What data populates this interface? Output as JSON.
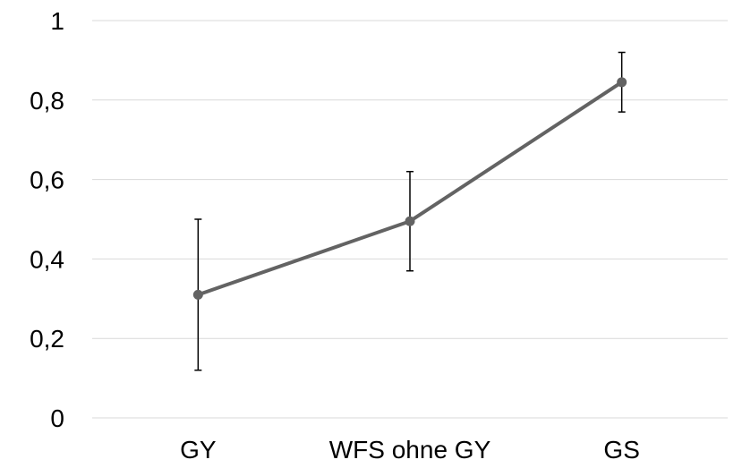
{
  "chart_data": {
    "type": "line",
    "categories": [
      "GY",
      "WFS ohne GY",
      "GS"
    ],
    "series": [
      {
        "values": [
          0.31,
          0.495,
          0.845
        ],
        "error_low": [
          0.12,
          0.37,
          0.77
        ],
        "error_high": [
          0.5,
          0.62,
          0.92
        ],
        "color": "#636363"
      }
    ],
    "ylim": [
      0,
      1
    ],
    "y_ticks": [
      "0",
      "0,2",
      "0,4",
      "0,6",
      "0,8",
      "1"
    ],
    "y_tick_values": [
      0,
      0.2,
      0.4,
      0.6,
      0.8,
      1
    ],
    "grid": true,
    "grid_color": "#d9d9d9",
    "title": "",
    "xlabel": "",
    "ylabel": ""
  }
}
